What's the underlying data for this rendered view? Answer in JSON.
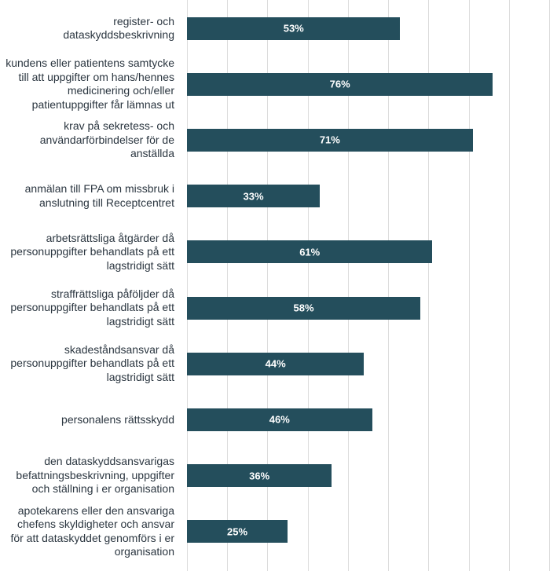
{
  "chart_data": {
    "type": "barh",
    "categories": [
      "register- och dataskyddsbeskrivning",
      "kundens eller patientens samtycke till att uppgifter om hans/hennes medicinering och/eller patientuppgifter får lämnas ut",
      "krav på sekretess- och användarförbindelser för de anställda",
      "anmälan till FPA om missbruk i anslutning till Receptcentret",
      "arbetsrättsliga åtgärder då personuppgifter behandlats på ett lagstridigt sätt",
      "straffrättsliga påföljder då personuppgifter behandlats på ett lagstridigt sätt",
      "skadeståndsansvar då personuppgifter behandlats på ett lagstridigt sätt",
      "personalens rättsskydd",
      "den dataskyddsansvarigas befattningsbeskrivning, uppgifter och ställning i er organisation",
      "apotekarens eller den ansvariga chefens skyldigheter och ansvar för att dataskyddet genomförs i er organisation"
    ],
    "values": [
      53,
      76,
      71,
      33,
      61,
      58,
      44,
      46,
      36,
      25
    ],
    "value_labels": [
      "53%",
      "76%",
      "71%",
      "33%",
      "61%",
      "58%",
      "44%",
      "46%",
      "36%",
      "25%"
    ],
    "color": "#244e5c",
    "xlim": [
      0,
      90
    ],
    "xticks": [
      0,
      10,
      20,
      30,
      40,
      50,
      60,
      70,
      80,
      90
    ],
    "grid": true
  }
}
